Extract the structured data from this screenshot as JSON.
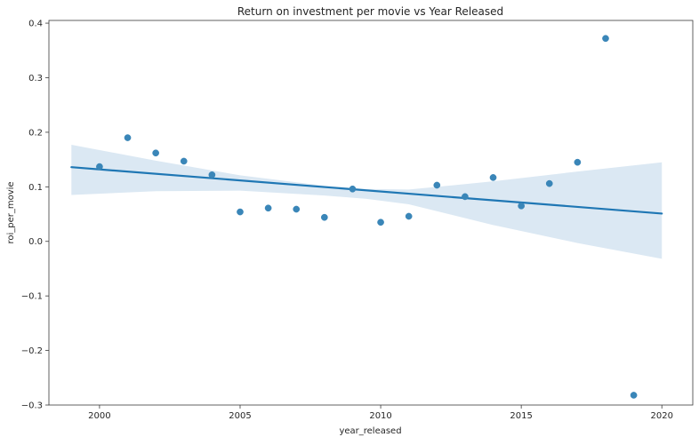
{
  "chart_data": {
    "type": "scatter",
    "title": "Return on investment per movie vs Year Released",
    "xlabel": "year_released",
    "ylabel": "roi_per_movie",
    "xlim": [
      1998.2,
      2021.1
    ],
    "ylim": [
      -0.3,
      0.405
    ],
    "xticks": [
      2000,
      2005,
      2010,
      2015,
      2020
    ],
    "yticks": [
      -0.3,
      -0.2,
      -0.1,
      0.0,
      0.1,
      0.2,
      0.3,
      0.4
    ],
    "xtick_labels": [
      "2000",
      "2005",
      "2010",
      "2015",
      "2020"
    ],
    "ytick_labels": [
      "−0.3",
      "−0.2",
      "−0.1",
      "0.0",
      "0.1",
      "0.2",
      "0.3",
      "0.4"
    ],
    "grid": false,
    "series": [
      {
        "type": "scatter",
        "color": "#3a86b8",
        "x": [
          2000,
          2001,
          2002,
          2003,
          2004,
          2005,
          2006,
          2007,
          2008,
          2009,
          2010,
          2011,
          2012,
          2013,
          2014,
          2015,
          2016,
          2017,
          2018,
          2019
        ],
        "y": [
          0.137,
          0.19,
          0.162,
          0.147,
          0.122,
          0.054,
          0.061,
          0.059,
          0.044,
          0.096,
          0.035,
          0.046,
          0.103,
          0.082,
          0.117,
          0.065,
          0.106,
          0.145,
          0.372,
          -0.282
        ]
      }
    ],
    "regression": {
      "color": "#1f77b4",
      "band_color": "#dbe8f3",
      "x_start": 1999,
      "x_end": 2020,
      "y_start": 0.136,
      "y_end": 0.051,
      "ci_x": [
        1999,
        2002,
        2005,
        2008,
        2009.5,
        2011,
        2014,
        2017,
        2020
      ],
      "ci_upper": [
        0.177,
        0.148,
        0.121,
        0.102,
        0.096,
        0.095,
        0.11,
        0.128,
        0.145
      ],
      "ci_lower": [
        0.085,
        0.092,
        0.093,
        0.084,
        0.078,
        0.068,
        0.03,
        -0.003,
        -0.032
      ]
    }
  }
}
